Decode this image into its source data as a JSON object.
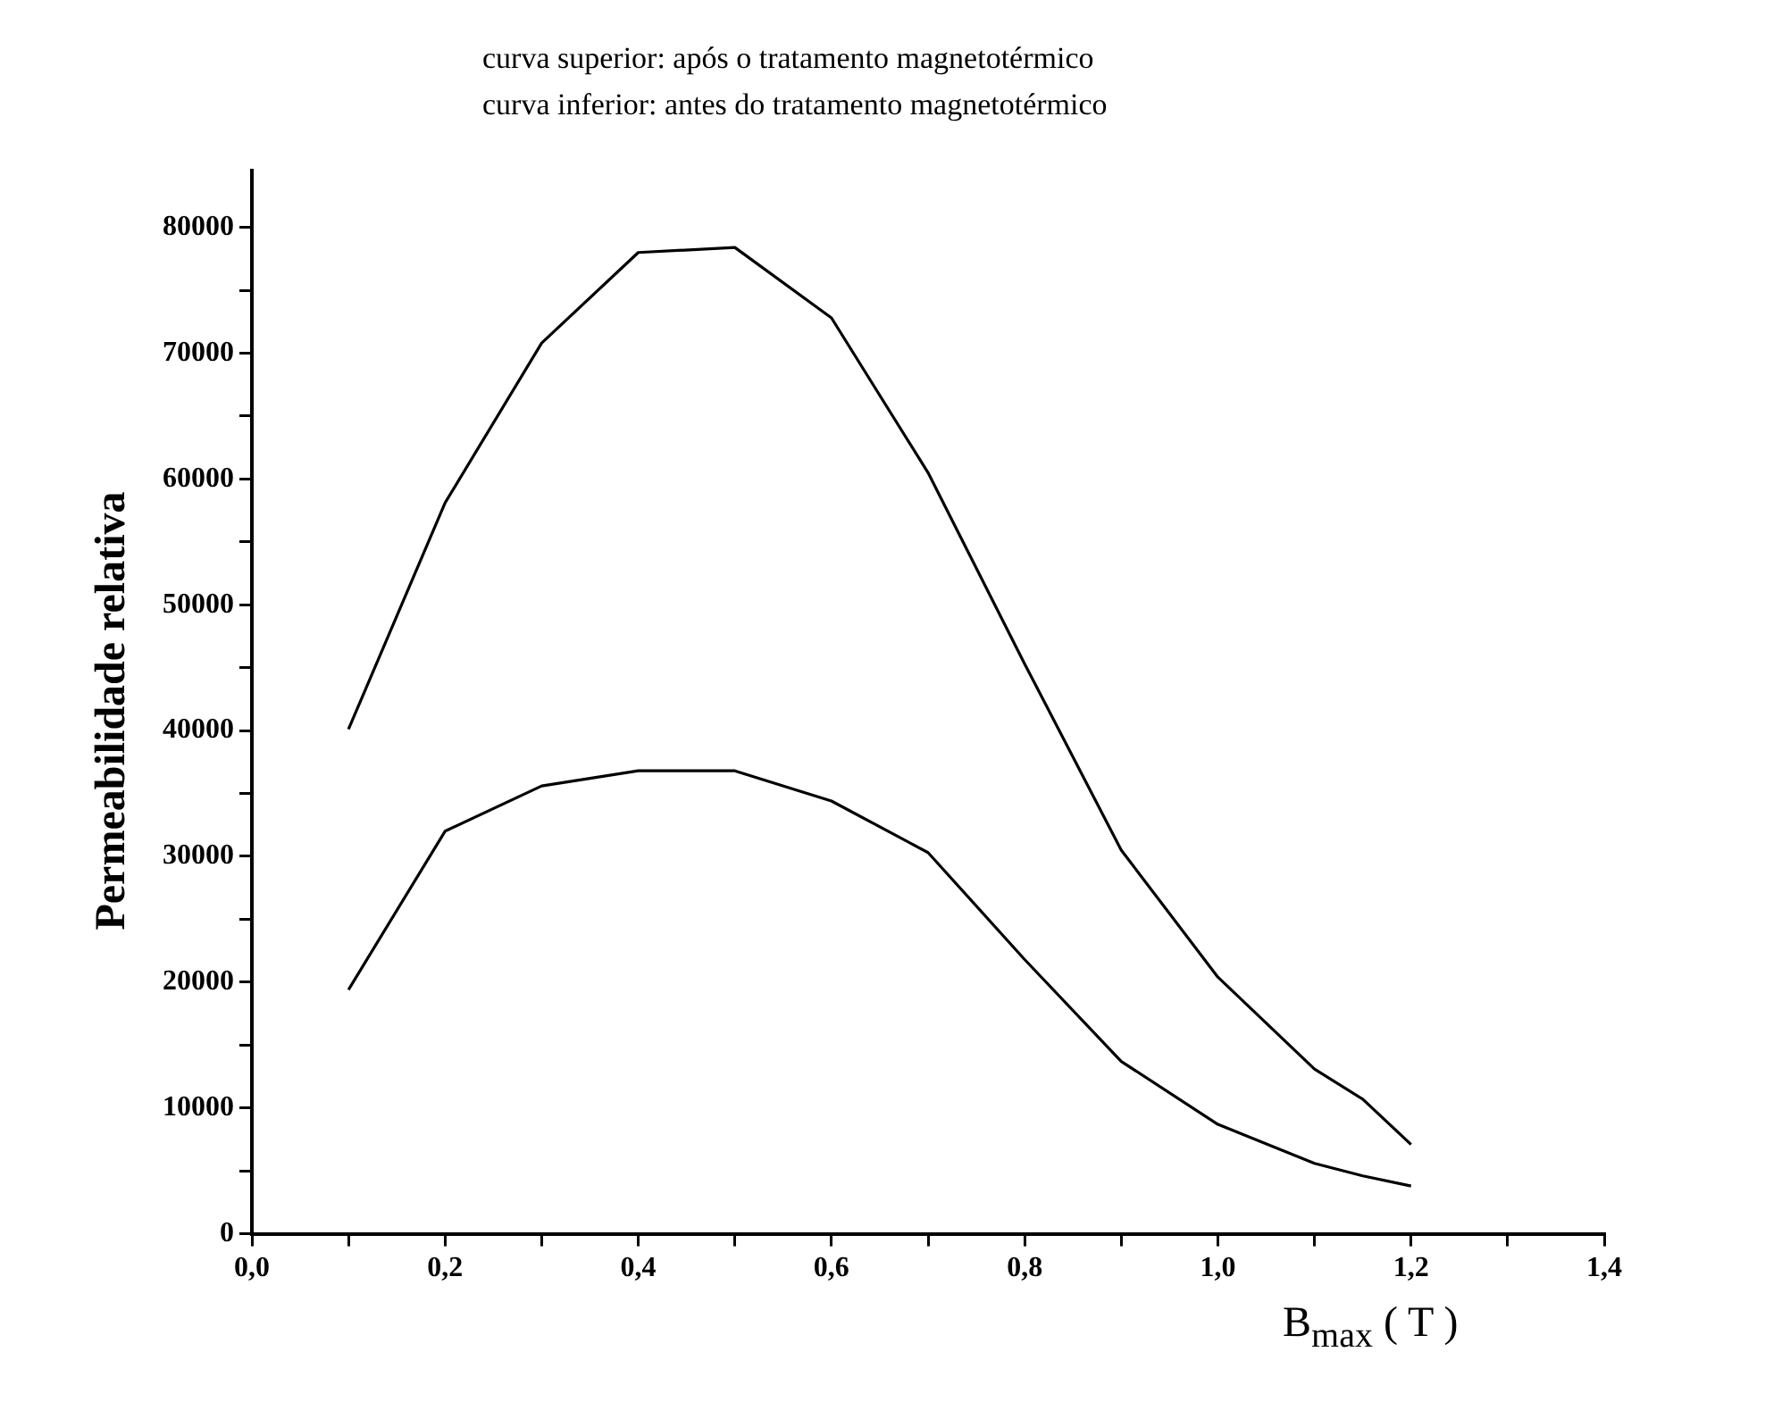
{
  "chart_data": {
    "type": "line",
    "xlabel": "B$_{max}$ ( T )",
    "ylabel": "Permeabilidade relativa",
    "annotations": [
      "curva superior: após o tratamento magnetotérmico",
      "curva inferior: antes do tratamento magnetotérmico"
    ],
    "x": [
      0.1,
      0.2,
      0.3,
      0.4,
      0.5,
      0.6,
      0.7,
      0.8,
      0.9,
      1.0,
      1.1,
      1.15,
      1.2
    ],
    "series": [
      {
        "color": "#000000",
        "values": [
          40100,
          58100,
          70800,
          78000,
          78400,
          72800,
          60500,
          45300,
          30500,
          20400,
          13100,
          10700,
          7100
        ]
      },
      {
        "color": "#000000",
        "values": [
          19400,
          32000,
          35600,
          36800,
          36800,
          34400,
          30300,
          21800,
          13700,
          8700,
          5600,
          4600,
          3800
        ]
      }
    ],
    "xlim": [
      0,
      1.4
    ],
    "ylim": [
      0,
      84500
    ],
    "xticks": [
      {
        "value": 0,
        "label": "0,0"
      },
      {
        "value": 0.1,
        "label": null
      },
      {
        "value": 0.2,
        "label": "0,2"
      },
      {
        "value": 0.3,
        "label": null
      },
      {
        "value": 0.4,
        "label": "0,4"
      },
      {
        "value": 0.5,
        "label": null
      },
      {
        "value": 0.6,
        "label": "0,6"
      },
      {
        "value": 0.7,
        "label": null
      },
      {
        "value": 0.8,
        "label": "0,8"
      },
      {
        "value": 0.9,
        "label": null
      },
      {
        "value": 1.0,
        "label": "1,0"
      },
      {
        "value": 1.1,
        "label": null
      },
      {
        "value": 1.2,
        "label": "1,2"
      },
      {
        "value": 1.3,
        "label": null
      },
      {
        "value": 1.4,
        "label": "1,4"
      }
    ],
    "yticks": [
      0,
      {
        "value": 5000,
        "label": null
      },
      10000,
      {
        "value": 15000,
        "label": null
      },
      20000,
      {
        "value": 25000,
        "label": null
      },
      30000,
      {
        "value": 35000,
        "label": null
      },
      40000,
      {
        "value": 45000,
        "label": null
      },
      50000,
      {
        "value": 55000,
        "label": null
      },
      60000,
      {
        "value": 65000,
        "label": null
      },
      70000,
      {
        "value": 75000,
        "label": null
      },
      80000
    ],
    "grid": false,
    "legend": false,
    "marker": "none",
    "line_style": "solid"
  }
}
